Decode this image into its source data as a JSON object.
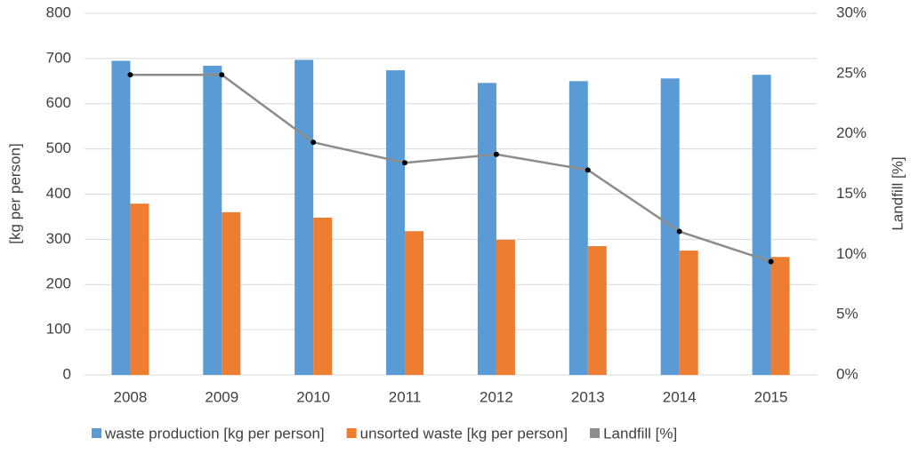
{
  "chart_data": {
    "type": "bar",
    "y_label": "[kg per person]",
    "y2_label": "Landfill [%]",
    "categories": [
      "2008",
      "2009",
      "2010",
      "2011",
      "2012",
      "2013",
      "2014",
      "2015"
    ],
    "series": [
      {
        "name": "waste production [kg per person]",
        "color": "#5b9bd5",
        "values": [
          695,
          684,
          697,
          674,
          646,
          650,
          656,
          664
        ]
      },
      {
        "name": "unsorted waste [kg per person]",
        "color": "#ed7d31",
        "values": [
          379,
          360,
          348,
          318,
          299,
          285,
          275,
          261
        ]
      },
      {
        "name": "Landfill [%]",
        "type": "line",
        "axis": "y2",
        "color": "#8c8c8c",
        "values": [
          24.9,
          24.9,
          19.3,
          17.6,
          18.3,
          17.0,
          11.9,
          9.4
        ]
      }
    ],
    "ylim": [
      0,
      800
    ],
    "yticks": [
      0,
      100,
      200,
      300,
      400,
      500,
      600,
      700,
      800
    ],
    "y2lim": [
      0,
      30
    ],
    "y2ticks": [
      {
        "value": 0,
        "label": "0%"
      },
      {
        "value": 5,
        "label": "5%"
      },
      {
        "value": 10,
        "label": "10%"
      },
      {
        "value": 15,
        "label": "15%"
      },
      {
        "value": 20,
        "label": "20%"
      },
      {
        "value": 25,
        "label": "25%"
      },
      {
        "value": 30,
        "label": "30%"
      }
    ],
    "grid": true,
    "legend": "bottom"
  }
}
